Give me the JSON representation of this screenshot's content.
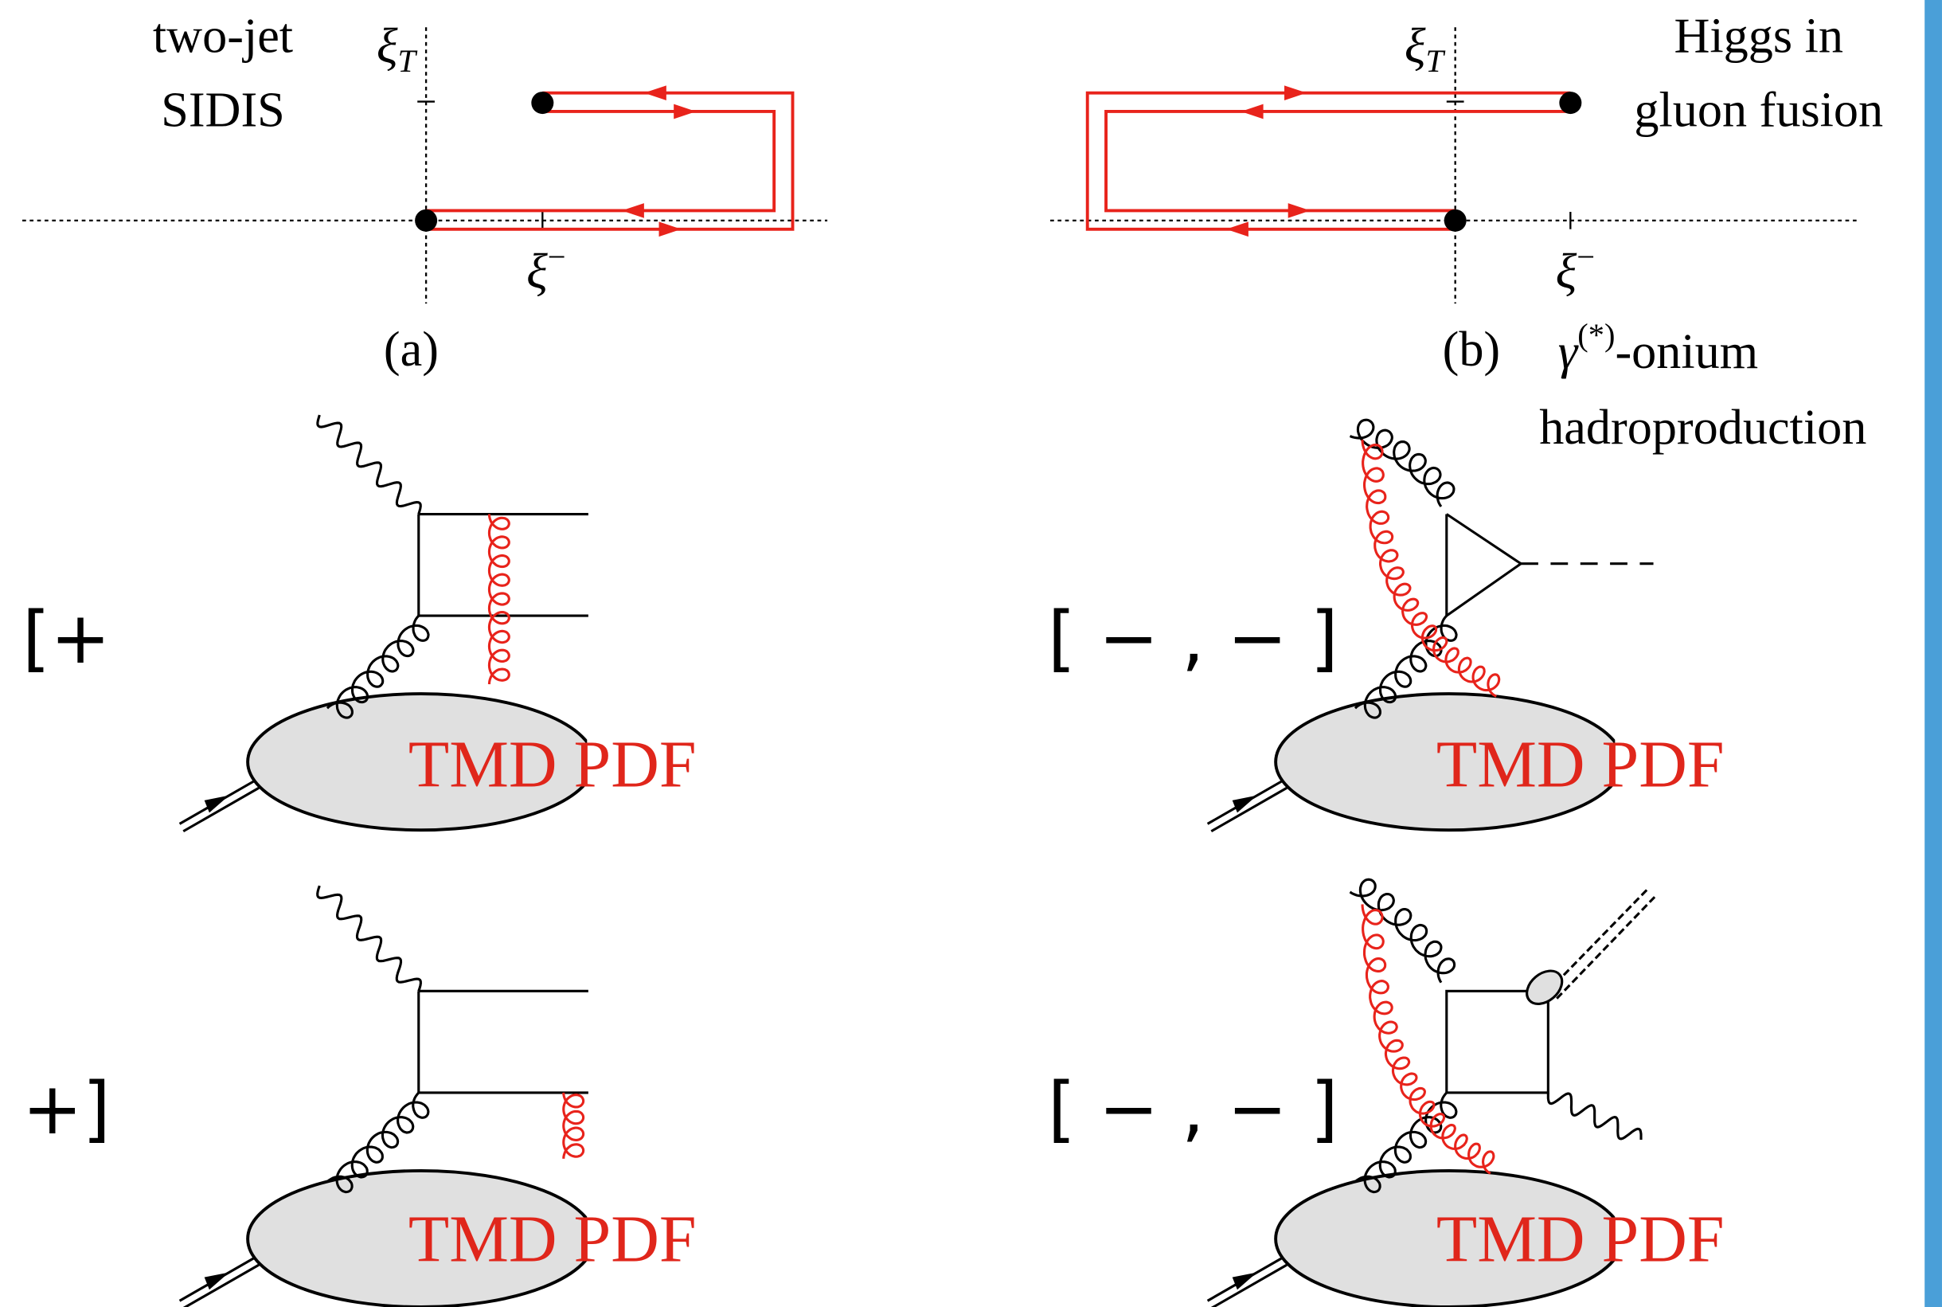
{
  "panel_a": {
    "process": [
      "two-jet",
      "SIDIS"
    ],
    "axis_t": {
      "symbol": "ξ",
      "sub": "T"
    },
    "axis_minus": {
      "symbol": "ξ",
      "sup": "−"
    },
    "caption": "(a)"
  },
  "panel_b": {
    "process_top": [
      "Higgs in",
      "gluon fusion"
    ],
    "process_bottom": {
      "symbol": "γ",
      "sup": "(*)",
      "suffix": "-onium",
      "line2": "hadroproduction"
    },
    "axis_t": {
      "symbol": "ξ",
      "sub": "T"
    },
    "axis_minus": {
      "symbol": "ξ",
      "sup": "−"
    },
    "caption": "(b)"
  },
  "diagrams": [
    {
      "bracket": "[+",
      "blob_label": "TMD PDF"
    },
    {
      "bracket": "+]",
      "blob_label": "TMD PDF"
    },
    {
      "bracket": "[ − , − ]",
      "blob_label": "TMD PDF"
    },
    {
      "bracket": "[ − , − ]",
      "blob_label": "TMD PDF"
    }
  ]
}
